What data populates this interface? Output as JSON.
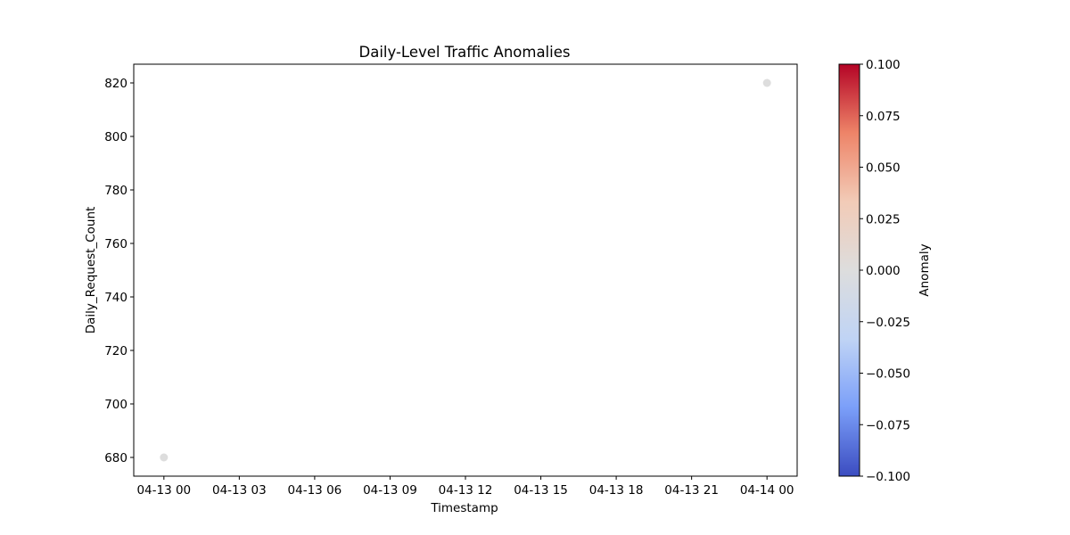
{
  "chart_data": {
    "type": "scatter",
    "title": "Daily-Level Traffic Anomalies",
    "xlabel": "Timestamp",
    "ylabel": "Daily_Request_Count",
    "x": [
      "2024-04-13T00:00",
      "2024-04-14T00:00"
    ],
    "y": [
      680,
      820
    ],
    "anomaly": [
      0,
      0
    ],
    "point_color": "#dddddd",
    "xticks": [
      {
        "value": "2024-04-13T00:00",
        "label": "04-13 00"
      },
      {
        "value": "2024-04-13T03:00",
        "label": "04-13 03"
      },
      {
        "value": "2024-04-13T06:00",
        "label": "04-13 06"
      },
      {
        "value": "2024-04-13T09:00",
        "label": "04-13 09"
      },
      {
        "value": "2024-04-13T12:00",
        "label": "04-13 12"
      },
      {
        "value": "2024-04-13T15:00",
        "label": "04-13 15"
      },
      {
        "value": "2024-04-13T18:00",
        "label": "04-13 18"
      },
      {
        "value": "2024-04-13T21:00",
        "label": "04-13 21"
      },
      {
        "value": "2024-04-14T00:00",
        "label": "04-14 00"
      }
    ],
    "xlim": [
      "2024-04-12T22:48",
      "2024-04-14T01:12"
    ],
    "ylim": [
      673,
      827
    ],
    "yticks": [
      680,
      700,
      720,
      740,
      760,
      780,
      800,
      820
    ],
    "grid": false,
    "colorbar": {
      "label": "Anomaly",
      "colormap": "coolwarm",
      "range": [
        -0.1,
        0.1
      ],
      "ticks": [
        -0.1,
        -0.075,
        -0.05,
        -0.025,
        0.0,
        0.025,
        0.05,
        0.075,
        0.1
      ],
      "tick_labels": [
        "−0.100",
        "−0.075",
        "−0.050",
        "−0.025",
        "0.000",
        "0.025",
        "0.050",
        "0.075",
        "0.100"
      ],
      "colors": [
        "#3b4cc0",
        "#7b9ff9",
        "#c0d4f5",
        "#dddddd",
        "#f2cbb7",
        "#ee8468",
        "#b40426"
      ]
    }
  }
}
